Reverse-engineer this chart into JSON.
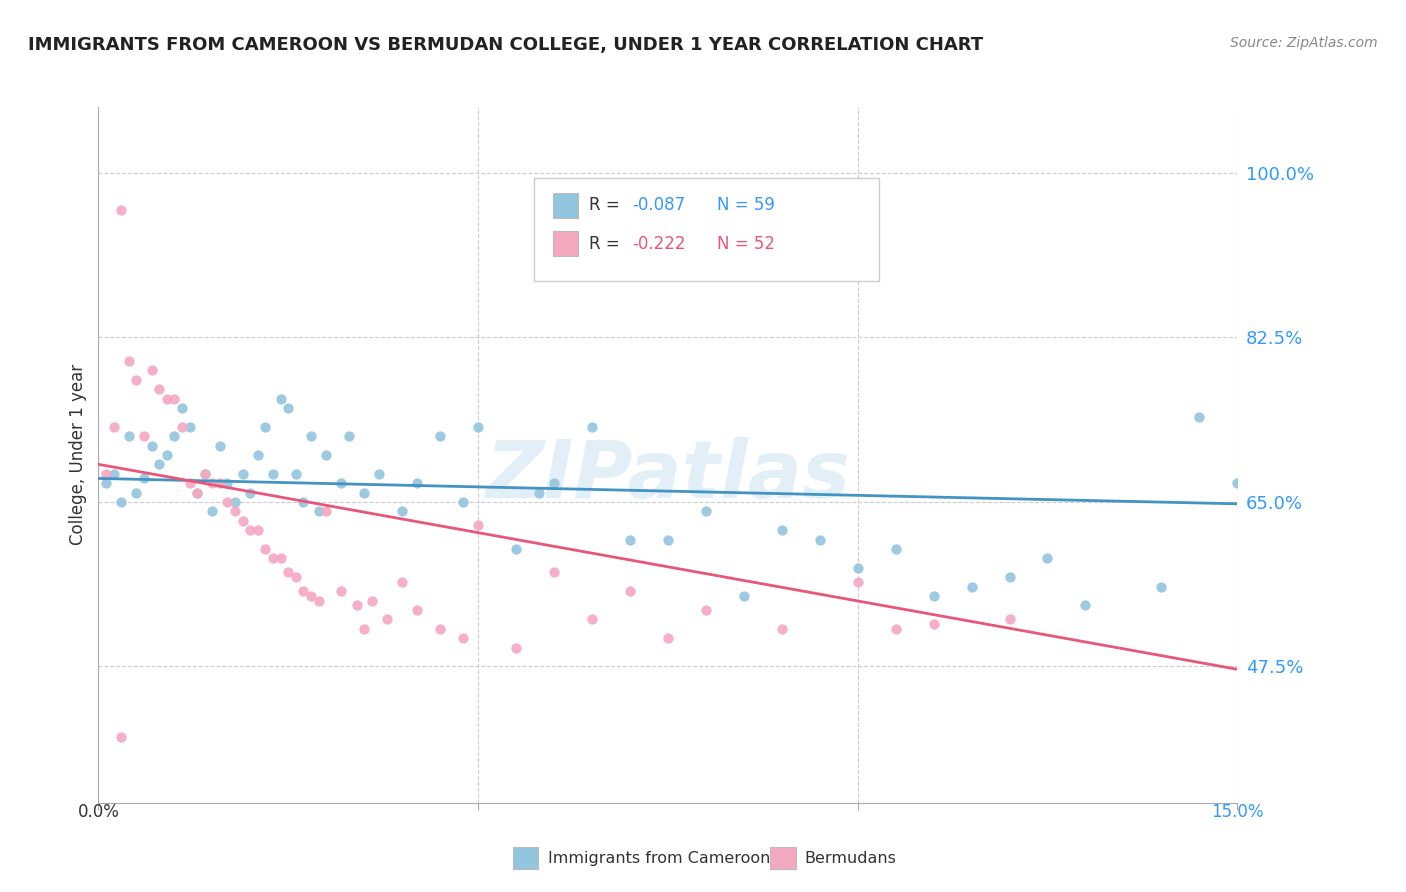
{
  "title": "IMMIGRANTS FROM CAMEROON VS BERMUDAN COLLEGE, UNDER 1 YEAR CORRELATION CHART",
  "source": "Source: ZipAtlas.com",
  "ylabel": "College, Under 1 year",
  "ylabel_ticks": [
    "100.0%",
    "82.5%",
    "65.0%",
    "47.5%"
  ],
  "ylabel_tick_vals": [
    1.0,
    0.825,
    0.65,
    0.475
  ],
  "xlim": [
    0.0,
    0.15
  ],
  "ylim": [
    0.33,
    1.07
  ],
  "blue_R": -0.087,
  "blue_N": 59,
  "pink_R": -0.222,
  "pink_N": 52,
  "legend_label1": "Immigrants from Cameroon",
  "legend_label2": "Bermudans",
  "blue_color": "#92c5de",
  "pink_color": "#f4a8c0",
  "blue_line_color": "#4393c3",
  "pink_line_color": "#e8567a",
  "watermark": "ZIPatlas",
  "blue_scatter_x": [
    0.001,
    0.002,
    0.003,
    0.004,
    0.005,
    0.006,
    0.007,
    0.008,
    0.009,
    0.01,
    0.011,
    0.012,
    0.013,
    0.014,
    0.015,
    0.016,
    0.017,
    0.018,
    0.019,
    0.02,
    0.021,
    0.022,
    0.023,
    0.024,
    0.025,
    0.026,
    0.027,
    0.028,
    0.029,
    0.03,
    0.032,
    0.033,
    0.035,
    0.037,
    0.04,
    0.042,
    0.045,
    0.048,
    0.05,
    0.055,
    0.058,
    0.06,
    0.065,
    0.07,
    0.075,
    0.08,
    0.085,
    0.09,
    0.1,
    0.105,
    0.11,
    0.115,
    0.12,
    0.125,
    0.13,
    0.14,
    0.145,
    0.15,
    0.095
  ],
  "blue_scatter_y": [
    0.67,
    0.68,
    0.65,
    0.72,
    0.66,
    0.675,
    0.71,
    0.69,
    0.7,
    0.72,
    0.75,
    0.73,
    0.66,
    0.68,
    0.64,
    0.71,
    0.67,
    0.65,
    0.68,
    0.66,
    0.7,
    0.73,
    0.68,
    0.76,
    0.75,
    0.68,
    0.65,
    0.72,
    0.64,
    0.7,
    0.67,
    0.72,
    0.66,
    0.68,
    0.64,
    0.67,
    0.72,
    0.65,
    0.73,
    0.6,
    0.66,
    0.67,
    0.73,
    0.61,
    0.61,
    0.64,
    0.55,
    0.62,
    0.58,
    0.6,
    0.55,
    0.56,
    0.57,
    0.59,
    0.54,
    0.56,
    0.74,
    0.67,
    0.61
  ],
  "pink_scatter_x": [
    0.001,
    0.002,
    0.003,
    0.004,
    0.005,
    0.006,
    0.007,
    0.008,
    0.009,
    0.01,
    0.011,
    0.012,
    0.013,
    0.014,
    0.015,
    0.016,
    0.017,
    0.018,
    0.019,
    0.02,
    0.021,
    0.022,
    0.023,
    0.024,
    0.025,
    0.026,
    0.027,
    0.028,
    0.029,
    0.03,
    0.032,
    0.034,
    0.036,
    0.038,
    0.04,
    0.042,
    0.045,
    0.05,
    0.06,
    0.07,
    0.08,
    0.09,
    0.1,
    0.105,
    0.11,
    0.12,
    0.003,
    0.035,
    0.055,
    0.065,
    0.075,
    0.048
  ],
  "pink_scatter_y": [
    0.68,
    0.73,
    0.96,
    0.8,
    0.78,
    0.72,
    0.79,
    0.77,
    0.76,
    0.76,
    0.73,
    0.67,
    0.66,
    0.68,
    0.67,
    0.67,
    0.65,
    0.64,
    0.63,
    0.62,
    0.62,
    0.6,
    0.59,
    0.59,
    0.575,
    0.57,
    0.555,
    0.55,
    0.545,
    0.64,
    0.555,
    0.54,
    0.545,
    0.525,
    0.565,
    0.535,
    0.515,
    0.625,
    0.575,
    0.555,
    0.535,
    0.515,
    0.565,
    0.515,
    0.52,
    0.525,
    0.4,
    0.515,
    0.495,
    0.525,
    0.505,
    0.505
  ],
  "blue_trend_x": [
    0.0,
    0.15
  ],
  "blue_trend_y": [
    0.675,
    0.648
  ],
  "pink_trend_x": [
    0.0,
    0.15
  ],
  "pink_trend_y": [
    0.69,
    0.472
  ]
}
